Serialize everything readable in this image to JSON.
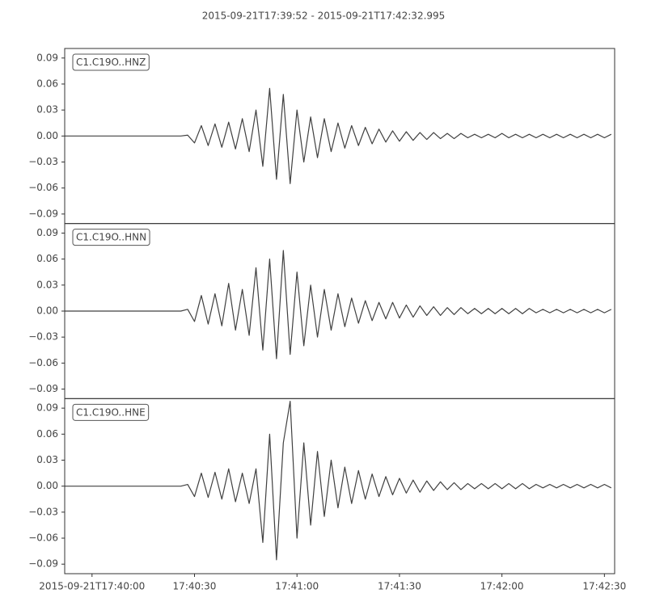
{
  "chart_data": {
    "type": "line",
    "title": "2015-09-21T17:39:52  -  2015-09-21T17:42:32.995",
    "x": [
      0,
      2,
      4,
      6,
      8,
      10,
      12,
      14,
      16,
      18,
      20,
      22,
      24,
      26,
      28,
      30,
      32,
      34,
      36,
      38,
      40,
      42,
      44,
      46,
      48,
      50,
      52,
      54,
      56,
      58,
      60,
      62,
      64,
      66,
      68,
      70,
      72,
      74,
      76,
      78,
      80,
      82,
      84,
      86,
      88,
      90,
      92,
      94,
      96,
      98,
      100,
      102,
      104,
      106,
      108,
      110,
      112,
      114,
      116,
      118,
      120,
      122,
      124,
      126,
      128,
      130,
      132,
      134,
      136,
      138,
      140,
      142,
      144,
      146,
      148,
      150,
      152,
      154,
      156,
      158,
      160
    ],
    "xlim": [
      0,
      160.995
    ],
    "xticks": [
      {
        "value": 8,
        "label": "2015-09-21T17:40:00"
      },
      {
        "value": 38,
        "label": "17:40:30"
      },
      {
        "value": 68,
        "label": "17:41:00"
      },
      {
        "value": 98,
        "label": "17:41:30"
      },
      {
        "value": 128,
        "label": "17:42:00"
      },
      {
        "value": 158,
        "label": "17:42:30"
      }
    ],
    "ylim": [
      -0.101,
      0.101
    ],
    "yticks": [
      {
        "value": -0.09,
        "label": "−0.09"
      },
      {
        "value": -0.06,
        "label": "−0.06"
      },
      {
        "value": -0.03,
        "label": "−0.03"
      },
      {
        "value": 0,
        "label": "0.00"
      },
      0.03,
      0.06,
      0.09
    ],
    "series": [
      {
        "name": "C1.C19O..HNZ",
        "color": "#404040",
        "values": [
          0,
          0,
          0,
          0,
          0,
          0,
          0,
          0,
          0,
          0,
          0,
          0,
          0,
          0,
          0,
          0,
          0,
          0,
          0.001,
          -0.008,
          0.012,
          -0.011,
          0.014,
          -0.013,
          0.016,
          -0.015,
          0.02,
          -0.018,
          0.03,
          -0.035,
          0.055,
          -0.05,
          0.048,
          -0.055,
          0.03,
          -0.03,
          0.022,
          -0.025,
          0.02,
          -0.018,
          0.015,
          -0.014,
          0.012,
          -0.011,
          0.01,
          -0.009,
          0.008,
          -0.007,
          0.006,
          -0.006,
          0.005,
          -0.005,
          0.004,
          -0.004,
          0.004,
          -0.003,
          0.003,
          -0.003,
          0.003,
          -0.002,
          0.002,
          -0.002,
          0.002,
          -0.002,
          0.003,
          -0.002,
          0.002,
          -0.002,
          0.002,
          -0.002,
          0.002,
          -0.002,
          0.002,
          -0.002,
          0.002,
          -0.002,
          0.002,
          -0.002,
          0.002,
          -0.002,
          0.002
        ]
      },
      {
        "name": "C1.C19O..HNN",
        "color": "#404040",
        "values": [
          0,
          0,
          0,
          0,
          0,
          0,
          0,
          0,
          0,
          0,
          0,
          0,
          0,
          0,
          0,
          0,
          0,
          0,
          0.002,
          -0.012,
          0.018,
          -0.015,
          0.02,
          -0.017,
          0.032,
          -0.022,
          0.025,
          -0.028,
          0.05,
          -0.045,
          0.06,
          -0.055,
          0.07,
          -0.05,
          0.045,
          -0.04,
          0.03,
          -0.03,
          0.025,
          -0.022,
          0.02,
          -0.018,
          0.015,
          -0.014,
          0.012,
          -0.011,
          0.01,
          -0.009,
          0.01,
          -0.008,
          0.007,
          -0.007,
          0.006,
          -0.005,
          0.005,
          -0.005,
          0.004,
          -0.004,
          0.004,
          -0.003,
          0.003,
          -0.003,
          0.003,
          -0.003,
          0.003,
          -0.003,
          0.003,
          -0.003,
          0.003,
          -0.002,
          0.002,
          -0.002,
          0.002,
          -0.002,
          0.002,
          -0.002,
          0.002,
          -0.002,
          0.002,
          -0.002,
          0.002
        ]
      },
      {
        "name": "C1.C19O..HNE",
        "color": "#404040",
        "values": [
          0,
          0,
          0,
          0,
          0,
          0,
          0,
          0,
          0,
          0,
          0,
          0,
          0,
          0,
          0,
          0,
          0,
          0,
          0.002,
          -0.012,
          0.015,
          -0.013,
          0.016,
          -0.015,
          0.02,
          -0.018,
          0.015,
          -0.02,
          0.02,
          -0.065,
          0.06,
          -0.085,
          0.05,
          0.098,
          -0.06,
          0.05,
          -0.045,
          0.04,
          -0.035,
          0.03,
          -0.025,
          0.022,
          -0.02,
          0.018,
          -0.015,
          0.014,
          -0.012,
          0.011,
          -0.01,
          0.009,
          -0.008,
          0.007,
          -0.007,
          0.006,
          -0.005,
          0.005,
          -0.004,
          0.004,
          -0.004,
          0.003,
          -0.003,
          0.003,
          -0.003,
          0.003,
          -0.003,
          0.003,
          -0.003,
          0.003,
          -0.003,
          0.002,
          -0.002,
          0.002,
          -0.002,
          0.002,
          -0.002,
          0.002,
          -0.002,
          0.002,
          -0.002,
          0.002,
          -0.002
        ]
      }
    ]
  }
}
